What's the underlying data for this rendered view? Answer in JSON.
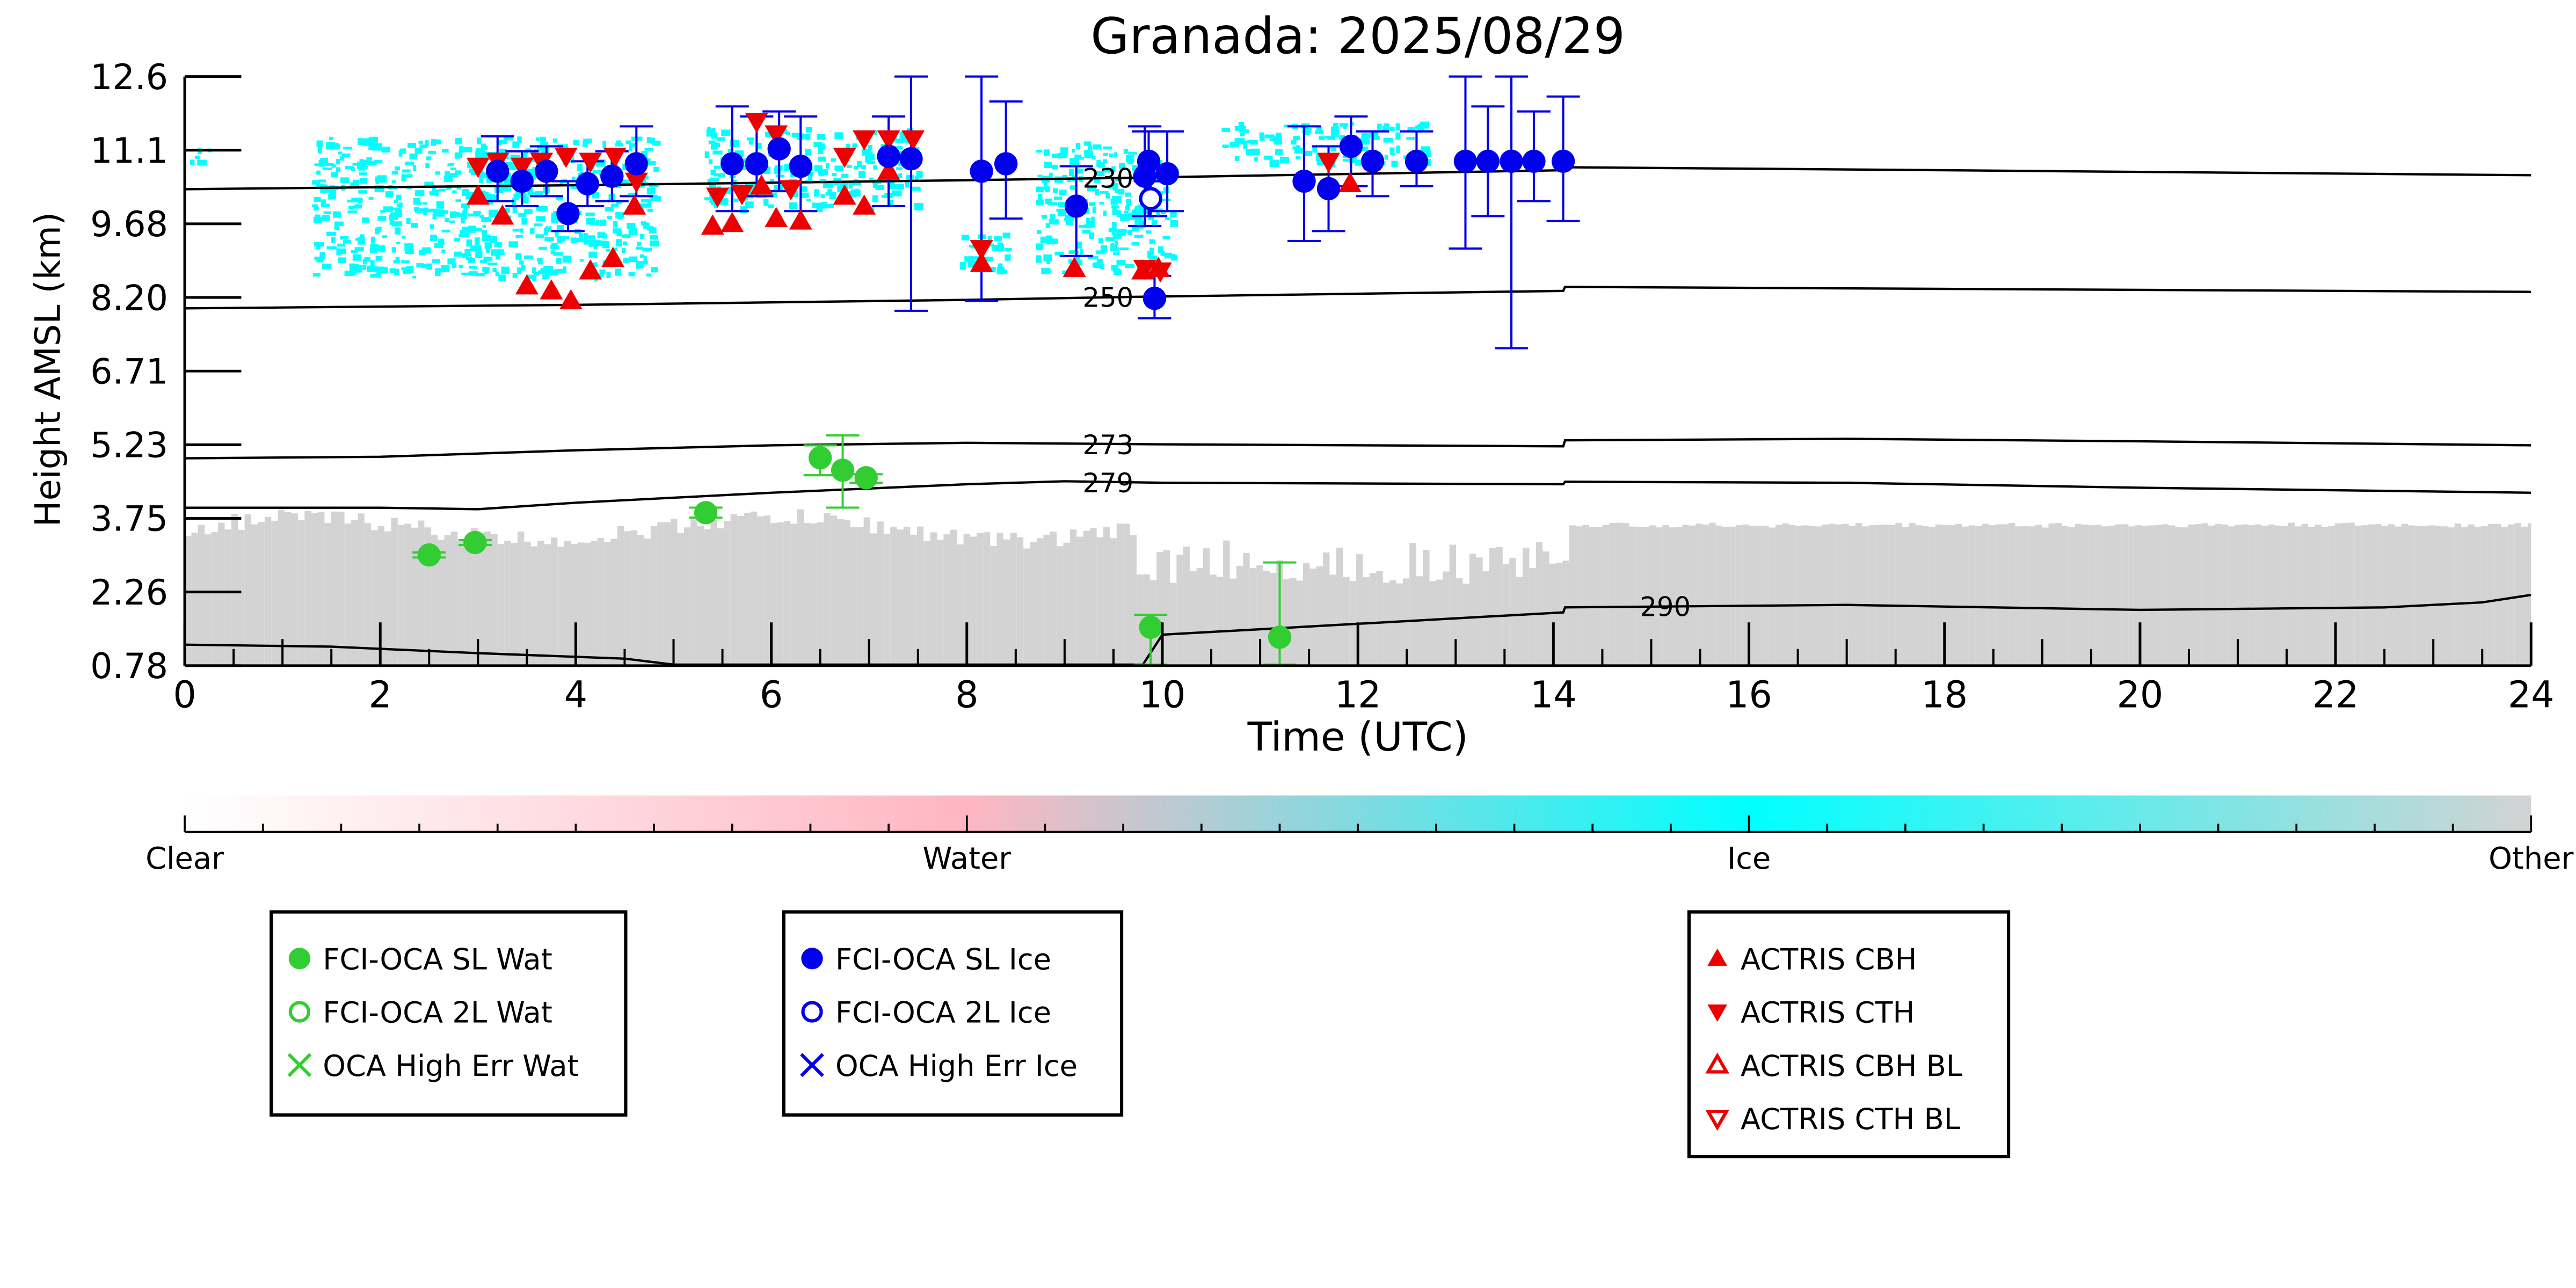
{
  "chart_data": {
    "type": "scatter",
    "title": "Granada: 2025/08/29",
    "xlabel": "Time (UTC)",
    "ylabel": "Height AMSL (km)",
    "xlim": [
      0,
      24
    ],
    "ylim": [
      0.78,
      12.6
    ],
    "xticks": [
      "0",
      "2",
      "4",
      "6",
      "8",
      "10",
      "12",
      "14",
      "16",
      "18",
      "20",
      "22",
      "24"
    ],
    "yticks": [
      "0.78",
      "2.26",
      "3.75",
      "5.23",
      "6.71",
      "8.20",
      "9.68",
      "11.1",
      "12.6"
    ],
    "grid": false,
    "colorbar": {
      "labels": [
        "Clear",
        "Water",
        "Ice",
        "Other"
      ],
      "colors": [
        "#ffffff",
        "#ffb6c1",
        "#00ffff",
        "#d3d3d3"
      ]
    },
    "background_classes": [
      {
        "class": "Ice",
        "color": "#00ffff",
        "regions": [
          {
            "x": [
              1.3,
              4.8
            ],
            "y": [
              8.6,
              11.4
            ]
          },
          {
            "x": [
              5.3,
              7.5
            ],
            "y": [
              10.0,
              11.6
            ]
          },
          {
            "x": [
              7.9,
              8.4
            ],
            "y": [
              8.7,
              9.5
            ]
          },
          {
            "x": [
              8.7,
              10.1
            ],
            "y": [
              8.7,
              11.3
            ]
          },
          {
            "x": [
              10.6,
              12.7
            ],
            "y": [
              10.9,
              11.7
            ]
          },
          {
            "x": [
              0.05,
              0.25
            ],
            "y": [
              10.9,
              11.3
            ]
          }
        ]
      },
      {
        "class": "Other",
        "color": "#d3d3d3",
        "region": "near-surface aerosol layer from 0.78 km up to about 3.4-4.0 km"
      }
    ],
    "isotherms": [
      {
        "label": "230",
        "x": [
          0,
          4,
          8,
          9.7,
          14.1,
          14.12,
          18,
          24
        ],
        "y": [
          10.34,
          10.42,
          10.52,
          10.57,
          10.72,
          10.78,
          10.72,
          10.62
        ]
      },
      {
        "label": "250",
        "x": [
          0,
          4,
          8,
          9.7,
          14.1,
          14.12,
          18,
          24
        ],
        "y": [
          7.95,
          8.02,
          8.12,
          8.18,
          8.3,
          8.38,
          8.34,
          8.28
        ]
      },
      {
        "label": "273",
        "x": [
          0,
          2,
          4,
          6,
          8,
          10,
          14.1,
          14.12,
          17,
          20,
          24
        ],
        "y": [
          4.94,
          4.97,
          5.1,
          5.2,
          5.25,
          5.22,
          5.18,
          5.3,
          5.33,
          5.28,
          5.2
        ]
      },
      {
        "label": "279",
        "x": [
          0,
          2,
          3,
          4,
          6,
          8,
          9,
          10,
          14.1,
          14.12,
          17,
          20,
          24
        ],
        "y": [
          3.95,
          3.95,
          3.92,
          4.05,
          4.25,
          4.42,
          4.48,
          4.45,
          4.42,
          4.47,
          4.45,
          4.35,
          4.25
        ]
      },
      {
        "label": "290",
        "x": [
          0,
          1.5,
          3,
          4.5,
          5,
          9.8,
          10,
          14.1,
          14.12,
          17,
          20,
          22.5,
          23.5,
          24
        ],
        "y": [
          1.2,
          1.16,
          1.03,
          0.92,
          0.8,
          0.8,
          1.4,
          1.85,
          1.95,
          2.0,
          1.9,
          1.95,
          2.05,
          2.2
        ]
      }
    ],
    "series": [
      {
        "name": "FCI-OCA SL Wat",
        "color": "#32cd32",
        "marker": "circle-filled",
        "points": [
          {
            "x": 2.5,
            "y": 3.0,
            "err": [
              3.05,
              2.95
            ]
          },
          {
            "x": 2.97,
            "y": 3.25,
            "err": [
              3.3,
              3.2
            ]
          },
          {
            "x": 5.33,
            "y": 3.85,
            "err": [
              3.95,
              3.75
            ]
          },
          {
            "x": 6.5,
            "y": 4.95,
            "err": [
              5.2,
              4.6
            ]
          },
          {
            "x": 6.73,
            "y": 4.7,
            "err": [
              5.4,
              3.95
            ]
          },
          {
            "x": 6.97,
            "y": 4.55,
            "err": [
              4.62,
              4.45
            ]
          },
          {
            "x": 9.88,
            "y": 1.55,
            "err": [
              1.8,
              0.8
            ]
          },
          {
            "x": 11.2,
            "y": 1.35,
            "err": [
              2.85,
              0.8
            ]
          }
        ]
      },
      {
        "name": "FCI-OCA 2L Wat",
        "color": "#32cd32",
        "marker": "circle-open",
        "points": []
      },
      {
        "name": "OCA High Err Wat",
        "color": "#32cd32",
        "marker": "x",
        "points": []
      },
      {
        "name": "FCI-OCA SL Ice",
        "color": "#0000ee",
        "marker": "circle-filled",
        "points": [
          {
            "x": 3.2,
            "y": 10.7,
            "err": [
              11.4,
              10.1
            ]
          },
          {
            "x": 3.45,
            "y": 10.5,
            "err": [
              11.1,
              10.0
            ]
          },
          {
            "x": 3.7,
            "y": 10.7,
            "err": [
              11.2,
              10.2
            ]
          },
          {
            "x": 3.92,
            "y": 9.85,
            "err": [
              10.5,
              9.5
            ]
          },
          {
            "x": 4.12,
            "y": 10.45,
            "err": [
              10.9,
              10.0
            ]
          },
          {
            "x": 4.37,
            "y": 10.6,
            "err": [
              11.1,
              10.1
            ]
          },
          {
            "x": 4.62,
            "y": 10.85,
            "err": [
              11.6,
              10.2
            ]
          },
          {
            "x": 5.6,
            "y": 10.85,
            "err": [
              12.0,
              9.9
            ]
          },
          {
            "x": 5.85,
            "y": 10.85,
            "err": [
              11.8,
              10.2
            ]
          },
          {
            "x": 6.08,
            "y": 11.15,
            "err": [
              11.9,
              10.3
            ]
          },
          {
            "x": 6.3,
            "y": 10.8,
            "err": [
              11.8,
              9.9
            ]
          },
          {
            "x": 7.2,
            "y": 11.0,
            "err": [
              11.8,
              10.0
            ]
          },
          {
            "x": 7.43,
            "y": 10.95,
            "err": [
              12.6,
              7.9
            ]
          },
          {
            "x": 8.15,
            "y": 10.7,
            "err": [
              12.6,
              8.1
            ]
          },
          {
            "x": 8.4,
            "y": 10.85,
            "err": [
              12.1,
              9.75
            ]
          },
          {
            "x": 9.12,
            "y": 10.0,
            "err": [
              10.8,
              9.0
            ]
          },
          {
            "x": 9.82,
            "y": 10.6,
            "err": [
              11.6,
              9.6
            ]
          },
          {
            "x": 9.86,
            "y": 10.9,
            "err": [
              11.5,
              9.8
            ]
          },
          {
            "x": 9.92,
            "y": 8.15,
            "err": [
              8.6,
              7.75
            ]
          },
          {
            "x": 10.05,
            "y": 10.65,
            "err": [
              11.5,
              9.9
            ]
          },
          {
            "x": 11.45,
            "y": 10.5,
            "err": [
              11.6,
              9.3
            ]
          },
          {
            "x": 11.7,
            "y": 10.35,
            "err": [
              11.2,
              9.5
            ]
          },
          {
            "x": 11.93,
            "y": 11.2,
            "err": [
              11.8,
              10.4
            ]
          },
          {
            "x": 12.15,
            "y": 10.9,
            "err": [
              11.5,
              10.2
            ]
          },
          {
            "x": 12.6,
            "y": 10.9,
            "err": [
              11.5,
              10.4
            ]
          },
          {
            "x": 13.1,
            "y": 10.9,
            "err": [
              12.6,
              9.15
            ]
          },
          {
            "x": 13.33,
            "y": 10.9,
            "err": [
              12.0,
              9.8
            ]
          },
          {
            "x": 13.57,
            "y": 10.9,
            "err": [
              12.6,
              7.15
            ]
          },
          {
            "x": 13.8,
            "y": 10.9,
            "err": [
              11.9,
              10.1
            ]
          },
          {
            "x": 14.1,
            "y": 10.9,
            "err": [
              12.2,
              9.7
            ]
          }
        ]
      },
      {
        "name": "FCI-OCA 2L Ice",
        "color": "#0000ee",
        "marker": "circle-open",
        "points": [
          {
            "x": 9.88,
            "y": 10.15,
            "err": [
              10.5,
              9.8
            ]
          }
        ]
      },
      {
        "name": "OCA High Err Ice",
        "color": "#0000ee",
        "marker": "x",
        "points": []
      },
      {
        "name": "ACTRIS CBH",
        "color": "#ee0000",
        "marker": "triangle-up",
        "points": [
          {
            "x": 3.0,
            "y": 10.2
          },
          {
            "x": 3.25,
            "y": 9.8
          },
          {
            "x": 3.5,
            "y": 8.4
          },
          {
            "x": 3.75,
            "y": 8.3
          },
          {
            "x": 3.95,
            "y": 8.1
          },
          {
            "x": 4.15,
            "y": 8.7
          },
          {
            "x": 4.38,
            "y": 8.95
          },
          {
            "x": 4.6,
            "y": 10.0
          },
          {
            "x": 5.4,
            "y": 9.6
          },
          {
            "x": 5.6,
            "y": 9.65
          },
          {
            "x": 5.9,
            "y": 10.4
          },
          {
            "x": 6.05,
            "y": 9.75
          },
          {
            "x": 6.3,
            "y": 9.7
          },
          {
            "x": 6.75,
            "y": 10.2
          },
          {
            "x": 6.95,
            "y": 10.0
          },
          {
            "x": 7.2,
            "y": 10.7
          },
          {
            "x": 8.15,
            "y": 8.85
          },
          {
            "x": 9.1,
            "y": 8.75
          },
          {
            "x": 9.8,
            "y": 8.7
          },
          {
            "x": 9.96,
            "y": 8.75
          },
          {
            "x": 11.92,
            "y": 10.45
          }
        ]
      },
      {
        "name": "ACTRIS CTH",
        "color": "#ee0000",
        "marker": "triangle-down",
        "points": [
          {
            "x": 3.0,
            "y": 10.8
          },
          {
            "x": 3.2,
            "y": 10.9
          },
          {
            "x": 3.45,
            "y": 10.8
          },
          {
            "x": 3.65,
            "y": 10.9
          },
          {
            "x": 3.9,
            "y": 11.0
          },
          {
            "x": 4.15,
            "y": 10.9
          },
          {
            "x": 4.4,
            "y": 11.0
          },
          {
            "x": 4.62,
            "y": 10.5
          },
          {
            "x": 5.45,
            "y": 10.2
          },
          {
            "x": 5.7,
            "y": 10.25
          },
          {
            "x": 5.85,
            "y": 11.7
          },
          {
            "x": 6.05,
            "y": 11.45
          },
          {
            "x": 6.2,
            "y": 10.35
          },
          {
            "x": 6.75,
            "y": 11.0
          },
          {
            "x": 6.95,
            "y": 11.35
          },
          {
            "x": 7.2,
            "y": 11.35
          },
          {
            "x": 7.45,
            "y": 11.35
          },
          {
            "x": 8.15,
            "y": 9.15
          },
          {
            "x": 9.82,
            "y": 8.75
          },
          {
            "x": 9.98,
            "y": 8.7
          },
          {
            "x": 11.7,
            "y": 10.9
          }
        ]
      },
      {
        "name": "ACTRIS CBH BL",
        "color": "#ee0000",
        "marker": "triangle-up-open",
        "points": []
      },
      {
        "name": "ACTRIS CTH BL",
        "color": "#ee0000",
        "marker": "triangle-down-open",
        "points": []
      }
    ]
  }
}
